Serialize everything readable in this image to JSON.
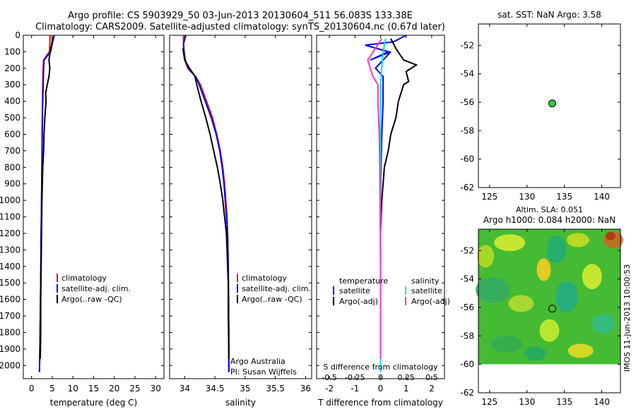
{
  "header": {
    "title_line1": "Argo profile: CS 5903929_50 03-Jun-2013 20130604_511 56.083S 133.38E",
    "title_line2": "Climatology: CARS2009. Satellite-adjusted climatology: synTS_20130604.nc (0.67d later)"
  },
  "colors": {
    "climatology": "#ff0000",
    "satellite": "#0000ff",
    "argo": "#000000",
    "cyan": "#00e5e5",
    "magenta": "#ff33cc",
    "dot": "#33cc33"
  },
  "chart_data": [
    {
      "type": "line",
      "id": "temperature",
      "xlabel": "temperature (deg C)",
      "ylabel": "",
      "xlim": [
        -2,
        32
      ],
      "ylim": [
        2080,
        0
      ],
      "xticks": [
        0,
        5,
        10,
        15,
        20,
        25,
        30
      ],
      "yticks": [
        0,
        100,
        200,
        300,
        400,
        500,
        600,
        700,
        800,
        900,
        1000,
        1100,
        1200,
        1300,
        1400,
        1500,
        1600,
        1700,
        1800,
        1900,
        2000
      ],
      "legend": [
        "climatology",
        "satellite-adj. clim.",
        "Argo(..raw -QC)"
      ],
      "series": [
        {
          "name": "climatology",
          "color": "climatology",
          "points": [
            [
              4.5,
              0
            ],
            [
              4.4,
              50
            ],
            [
              4.3,
              100
            ],
            [
              2.9,
              150
            ],
            [
              2.8,
              200
            ],
            [
              2.7,
              300
            ],
            [
              2.6,
              500
            ],
            [
              2.5,
              800
            ],
            [
              2.4,
              1000
            ],
            [
              2.3,
              1200
            ],
            [
              2.2,
              1500
            ],
            [
              2.1,
              1700
            ],
            [
              2.0,
              1900
            ],
            [
              1.9,
              2040
            ]
          ]
        },
        {
          "name": "satellite-adj. clim.",
          "color": "satellite",
          "points": [
            [
              5.5,
              0
            ],
            [
              5.0,
              50
            ],
            [
              4.6,
              100
            ],
            [
              3.0,
              150
            ],
            [
              2.9,
              200
            ],
            [
              2.8,
              300
            ],
            [
              2.6,
              500
            ],
            [
              2.5,
              800
            ],
            [
              2.4,
              1000
            ],
            [
              2.3,
              1200
            ],
            [
              2.2,
              1500
            ],
            [
              2.1,
              1700
            ],
            [
              2.0,
              1900
            ],
            [
              1.9,
              2040
            ]
          ]
        },
        {
          "name": "Argo(..raw -QC)",
          "color": "argo",
          "points": [
            [
              5.1,
              10
            ],
            [
              4.9,
              50
            ],
            [
              4.5,
              100
            ],
            [
              4.2,
              150
            ],
            [
              4.4,
              200
            ],
            [
              4.2,
              250
            ],
            [
              3.8,
              300
            ],
            [
              3.4,
              350
            ],
            [
              3.5,
              400
            ],
            [
              3.2,
              500
            ],
            [
              3.0,
              600
            ],
            [
              2.9,
              700
            ],
            [
              2.7,
              800
            ],
            [
              2.5,
              1000
            ],
            [
              2.4,
              1200
            ],
            [
              2.3,
              1400
            ],
            [
              2.2,
              1600
            ],
            [
              2.2,
              1800
            ],
            [
              2.1,
              1960
            ]
          ]
        }
      ]
    },
    {
      "type": "line",
      "id": "salinity",
      "xlabel": "salinity",
      "xlim": [
        33.75,
        36.1
      ],
      "ylim": [
        2080,
        0
      ],
      "xticks": [
        34,
        34.5,
        35,
        35.5,
        36
      ],
      "legend": [
        "climatology",
        "satellite-adj. clim.",
        "Argo(..raw -QC)"
      ],
      "annotation": [
        "Argo Australia",
        "PI: Susan Wijffels"
      ],
      "series": [
        {
          "name": "climatology",
          "color": "climatology",
          "points": [
            [
              33.98,
              0
            ],
            [
              33.98,
              100
            ],
            [
              34.0,
              150
            ],
            [
              34.05,
              200
            ],
            [
              34.18,
              250
            ],
            [
              34.26,
              300
            ],
            [
              34.36,
              400
            ],
            [
              34.46,
              500
            ],
            [
              34.53,
              600
            ],
            [
              34.59,
              700
            ],
            [
              34.63,
              800
            ],
            [
              34.66,
              900
            ],
            [
              34.68,
              1000
            ],
            [
              34.7,
              1100
            ],
            [
              34.71,
              1200
            ],
            [
              34.72,
              1400
            ],
            [
              34.73,
              1600
            ],
            [
              34.73,
              1800
            ],
            [
              34.73,
              2040
            ]
          ]
        },
        {
          "name": "satellite-adj. clim.",
          "color": "satellite",
          "points": [
            [
              34.02,
              0
            ],
            [
              33.98,
              50
            ],
            [
              33.99,
              100
            ],
            [
              34.01,
              150
            ],
            [
              34.06,
              200
            ],
            [
              34.18,
              250
            ],
            [
              34.24,
              300
            ],
            [
              34.34,
              400
            ],
            [
              34.44,
              500
            ],
            [
              34.52,
              600
            ],
            [
              34.58,
              700
            ],
            [
              34.62,
              800
            ],
            [
              34.65,
              900
            ],
            [
              34.67,
              1000
            ],
            [
              34.69,
              1100
            ],
            [
              34.71,
              1200
            ],
            [
              34.72,
              1400
            ],
            [
              34.72,
              1600
            ],
            [
              34.73,
              1800
            ],
            [
              34.73,
              2040
            ]
          ]
        },
        {
          "name": "Argo(..raw -QC)",
          "color": "argo",
          "points": [
            [
              33.97,
              80
            ],
            [
              34.0,
              150
            ],
            [
              34.08,
              200
            ],
            [
              34.17,
              250
            ],
            [
              34.2,
              300
            ],
            [
              34.27,
              400
            ],
            [
              34.35,
              500
            ],
            [
              34.42,
              600
            ],
            [
              34.48,
              700
            ],
            [
              34.54,
              800
            ],
            [
              34.59,
              900
            ],
            [
              34.63,
              1000
            ],
            [
              34.66,
              1100
            ],
            [
              34.69,
              1200
            ],
            [
              34.7,
              1300
            ],
            [
              34.71,
              1400
            ],
            [
              34.72,
              1500
            ],
            [
              34.72,
              1700
            ],
            [
              34.73,
              1900
            ],
            [
              34.73,
              1960
            ]
          ]
        }
      ]
    },
    {
      "type": "line",
      "id": "difference",
      "xlabel": "T difference from climatology",
      "xlabel_top": "S difference from climatology",
      "xlim": [
        -2.5,
        2.5
      ],
      "ylim": [
        2080,
        0
      ],
      "xticks": [
        -2,
        -1,
        0,
        1,
        2
      ],
      "xticks_s": [
        "-0.5",
        "-0.25",
        "0",
        "0.25",
        "0.5"
      ],
      "xticks_s_values": [
        -2,
        -1,
        0,
        1,
        2
      ],
      "legend_left_title": "temperature",
      "legend_right_title": "salinity",
      "legend_left": [
        "satellite",
        "Argo(-adj)"
      ],
      "legend_right": [
        "satellite",
        "Argo(-adj)"
      ],
      "series": [
        {
          "name": "T satellite",
          "color": "satellite",
          "points": [
            [
              1.0,
              0
            ],
            [
              0.5,
              40
            ],
            [
              -0.6,
              60
            ],
            [
              0.3,
              100
            ],
            [
              -0.4,
              150
            ],
            [
              0.4,
              100
            ],
            [
              -0.2,
              200
            ],
            [
              0.1,
              250
            ],
            [
              0.1,
              400
            ],
            [
              0.05,
              600
            ],
            [
              0.02,
              800
            ],
            [
              0.0,
              1000
            ],
            [
              0.0,
              1200
            ],
            [
              0.0,
              1500
            ],
            [
              0.0,
              2040
            ]
          ]
        },
        {
          "name": "T Argo(-adj)",
          "color": "argo",
          "points": [
            [
              0.4,
              20
            ],
            [
              0.6,
              80
            ],
            [
              0.9,
              150
            ],
            [
              1.4,
              180
            ],
            [
              1.0,
              220
            ],
            [
              1.1,
              280
            ],
            [
              0.9,
              300
            ],
            [
              0.7,
              400
            ],
            [
              0.6,
              500
            ],
            [
              0.4,
              600
            ],
            [
              0.3,
              700
            ],
            [
              0.15,
              800
            ],
            [
              0.1,
              900
            ],
            [
              0.05,
              1000
            ],
            [
              0.0,
              1200
            ],
            [
              0.0,
              1500
            ],
            [
              0.0,
              1960
            ]
          ]
        },
        {
          "name": "S satellite",
          "color": "cyan",
          "points": [
            [
              0.2,
              20
            ],
            [
              0.1,
              100
            ],
            [
              0.05,
              200
            ],
            [
              0.0,
              300
            ],
            [
              0.0,
              500
            ],
            [
              0.0,
              800
            ],
            [
              0.0,
              1200
            ],
            [
              0.0,
              1600
            ],
            [
              0.0,
              2040
            ]
          ]
        },
        {
          "name": "S Argo(-adj)",
          "color": "magenta",
          "points": [
            [
              0.05,
              20
            ],
            [
              -0.2,
              80
            ],
            [
              -0.5,
              150
            ],
            [
              -0.3,
              250
            ],
            [
              -0.1,
              300
            ],
            [
              -0.1,
              400
            ],
            [
              -0.05,
              600
            ],
            [
              -0.03,
              800
            ],
            [
              -0.02,
              1000
            ],
            [
              -0.01,
              1200
            ],
            [
              0.0,
              1500
            ],
            [
              0.0,
              1960
            ]
          ]
        }
      ]
    },
    {
      "type": "scatter",
      "id": "sst_map",
      "title": "sat. SST: NaN Argo: 3.58",
      "xlim": [
        123.5,
        142.5
      ],
      "ylim": [
        -62,
        -50.5
      ],
      "xticks": [
        125,
        130,
        135,
        140
      ],
      "yticks": [
        -52,
        -54,
        -56,
        -58,
        -60,
        -62
      ],
      "points": [
        [
          133.38,
          -56.08
        ]
      ]
    },
    {
      "type": "heatmap",
      "id": "sla_map",
      "title_line1": "Altim. SLA: 0.051",
      "title_line2": "Argo h1000: 0.084 h2000: NaN",
      "xlim": [
        123.5,
        142.5
      ],
      "ylim": [
        -62,
        -50.5
      ],
      "xticks": [
        125,
        130,
        135,
        140
      ],
      "yticks": [
        -52,
        -54,
        -56,
        -58,
        -60,
        -62
      ],
      "points": [
        [
          133.38,
          -56.08
        ]
      ],
      "side_label": "IMOS 11-Jun-2013 10:00:53"
    }
  ]
}
